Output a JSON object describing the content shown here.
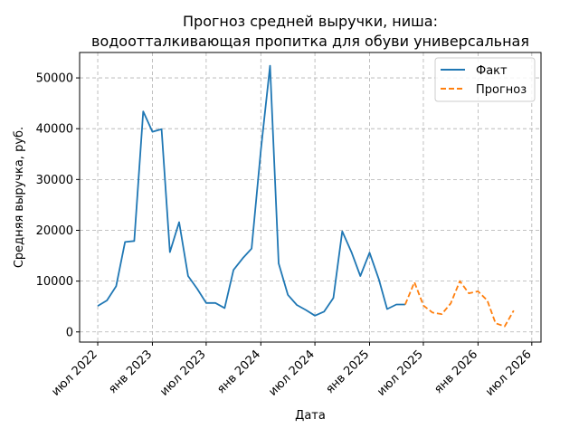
{
  "chart_data": {
    "type": "line",
    "title_line1": "Прогноз средней выручки, ниша:",
    "title_line2": "водоотталкивающая пропитка для обуви универсальная",
    "xlabel": "Дата",
    "ylabel": "Средняя выручка, руб.",
    "x_range": [
      "2022-05-01",
      "2026-08-01"
    ],
    "ylim": [
      -2000,
      55000
    ],
    "y_ticks": [
      0,
      10000,
      20000,
      30000,
      40000,
      50000
    ],
    "x_ticks": [
      {
        "date": "2022-07-01",
        "label": "июл 2022"
      },
      {
        "date": "2023-01-01",
        "label": "янв 2023"
      },
      {
        "date": "2023-07-01",
        "label": "июл 2023"
      },
      {
        "date": "2024-01-01",
        "label": "янв 2024"
      },
      {
        "date": "2024-07-01",
        "label": "июл 2024"
      },
      {
        "date": "2025-01-01",
        "label": "янв 2025"
      },
      {
        "date": "2025-07-01",
        "label": "июл 2025"
      },
      {
        "date": "2026-01-01",
        "label": "янв 2026"
      },
      {
        "date": "2026-07-01",
        "label": "июл 2026"
      }
    ],
    "grid": true,
    "legend_position": "top-right",
    "series": [
      {
        "name": "Факт",
        "color": "#1f77b4",
        "style": "solid",
        "x": [
          "2022-07-01",
          "2022-08-01",
          "2022-09-01",
          "2022-10-01",
          "2022-11-01",
          "2022-12-01",
          "2023-01-01",
          "2023-02-01",
          "2023-03-01",
          "2023-04-01",
          "2023-05-01",
          "2023-06-01",
          "2023-07-01",
          "2023-08-01",
          "2023-09-01",
          "2023-10-01",
          "2023-11-01",
          "2023-12-01",
          "2024-01-01",
          "2024-02-01",
          "2024-03-01",
          "2024-04-01",
          "2024-05-01",
          "2024-06-01",
          "2024-07-01",
          "2024-08-01",
          "2024-09-01",
          "2024-10-01",
          "2024-11-01",
          "2024-12-01",
          "2025-01-01",
          "2025-02-01",
          "2025-03-01",
          "2025-04-01",
          "2025-05-01"
        ],
        "y": [
          5100,
          6200,
          9000,
          17700,
          17900,
          43400,
          39400,
          39900,
          15700,
          21600,
          11000,
          8500,
          5700,
          5700,
          4700,
          12200,
          14500,
          16400,
          35700,
          52400,
          13500,
          7300,
          5300,
          4300,
          3200,
          4000,
          6700,
          19800,
          15700,
          11000,
          15600,
          10400,
          4500,
          5400,
          5400
        ]
      },
      {
        "name": "Прогноз",
        "color": "#ff7f0e",
        "style": "dashed",
        "x": [
          "2025-05-01",
          "2025-06-01",
          "2025-07-01",
          "2025-08-01",
          "2025-09-01",
          "2025-10-01",
          "2025-11-01",
          "2025-12-01",
          "2026-01-01",
          "2026-02-01",
          "2026-03-01",
          "2026-04-01",
          "2026-05-01"
        ],
        "y": [
          5400,
          9800,
          5200,
          3800,
          3500,
          5600,
          10000,
          7600,
          8000,
          6200,
          1700,
          1100,
          4200
        ]
      }
    ]
  }
}
